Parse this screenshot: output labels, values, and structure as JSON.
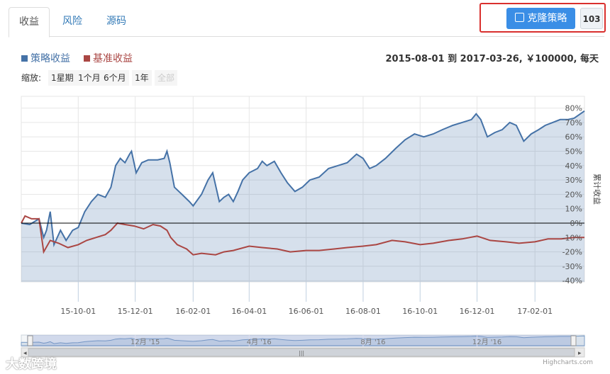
{
  "tabs": [
    "收益",
    "风险",
    "源码"
  ],
  "clone": {
    "label": "克隆策略",
    "count": "103"
  },
  "legend": {
    "strategy": "策略收益",
    "benchmark": "基准收益"
  },
  "range_text": "2015-08-01 到 2017-03-26, ￥100000, 每天",
  "zoom": {
    "label": "缩放:",
    "buttons": [
      "1星期",
      "1个月",
      "6个月",
      "1年",
      "全部"
    ]
  },
  "navigator_labels": [
    "12月 '15",
    "4月 '16",
    "8月 '16",
    "12月 '16"
  ],
  "watermark": "大数跨境",
  "credits": "Highcharts.com",
  "colors": {
    "strategy": "#4572a7",
    "benchmark": "#aa4643",
    "accent": "#3a8ee6",
    "highlight": "#d9302e"
  },
  "chart_data": {
    "type": "area",
    "ylabel": "累计收益",
    "yticks": [
      "80%",
      "70%",
      "60%",
      "50%",
      "40%",
      "30%",
      "20%",
      "10%",
      "0%",
      "-10%",
      "-20%",
      "-30%",
      "-40%"
    ],
    "ylim": [
      -40,
      80
    ],
    "xticks": [
      "15-10-01",
      "15-12-01",
      "16-02-01",
      "16-04-01",
      "16-06-01",
      "16-08-01",
      "16-10-01",
      "16-12-01",
      "17-02-01"
    ],
    "xlim": [
      "2015-08-01",
      "2017-03-26"
    ],
    "series": [
      {
        "name": "策略收益",
        "points": [
          [
            "2015-08-01",
            0
          ],
          [
            "2015-08-10",
            -1
          ],
          [
            "2015-08-20",
            3
          ],
          [
            "2015-08-25",
            -10
          ],
          [
            "2015-08-28",
            -5
          ],
          [
            "2015-09-01",
            8
          ],
          [
            "2015-09-05",
            -15
          ],
          [
            "2015-09-12",
            -5
          ],
          [
            "2015-09-18",
            -12
          ],
          [
            "2015-09-25",
            -5
          ],
          [
            "2015-10-01",
            -3
          ],
          [
            "2015-10-08",
            8
          ],
          [
            "2015-10-15",
            15
          ],
          [
            "2015-10-22",
            20
          ],
          [
            "2015-10-30",
            18
          ],
          [
            "2015-11-05",
            25
          ],
          [
            "2015-11-10",
            40
          ],
          [
            "2015-11-15",
            45
          ],
          [
            "2015-11-20",
            42
          ],
          [
            "2015-11-25",
            48
          ],
          [
            "2015-11-27",
            50
          ],
          [
            "2015-12-02",
            35
          ],
          [
            "2015-12-08",
            42
          ],
          [
            "2015-12-15",
            44
          ],
          [
            "2015-12-25",
            44
          ],
          [
            "2016-01-01",
            45
          ],
          [
            "2016-01-04",
            50
          ],
          [
            "2016-01-07",
            42
          ],
          [
            "2016-01-12",
            25
          ],
          [
            "2016-01-20",
            20
          ],
          [
            "2016-01-28",
            15
          ],
          [
            "2016-02-01",
            12
          ],
          [
            "2016-02-10",
            20
          ],
          [
            "2016-02-17",
            30
          ],
          [
            "2016-02-22",
            35
          ],
          [
            "2016-02-29",
            15
          ],
          [
            "2016-03-05",
            18
          ],
          [
            "2016-03-10",
            20
          ],
          [
            "2016-03-15",
            15
          ],
          [
            "2016-03-20",
            22
          ],
          [
            "2016-03-25",
            30
          ],
          [
            "2016-04-01",
            35
          ],
          [
            "2016-04-10",
            38
          ],
          [
            "2016-04-15",
            43
          ],
          [
            "2016-04-20",
            40
          ],
          [
            "2016-04-28",
            43
          ],
          [
            "2016-05-05",
            35
          ],
          [
            "2016-05-12",
            28
          ],
          [
            "2016-05-20",
            22
          ],
          [
            "2016-05-28",
            25
          ],
          [
            "2016-06-05",
            30
          ],
          [
            "2016-06-15",
            32
          ],
          [
            "2016-06-25",
            38
          ],
          [
            "2016-07-05",
            40
          ],
          [
            "2016-07-15",
            42
          ],
          [
            "2016-07-25",
            48
          ],
          [
            "2016-08-01",
            45
          ],
          [
            "2016-08-08",
            38
          ],
          [
            "2016-08-15",
            40
          ],
          [
            "2016-08-25",
            45
          ],
          [
            "2016-09-05",
            52
          ],
          [
            "2016-09-15",
            58
          ],
          [
            "2016-09-25",
            62
          ],
          [
            "2016-10-05",
            60
          ],
          [
            "2016-10-15",
            62
          ],
          [
            "2016-10-25",
            65
          ],
          [
            "2016-11-05",
            68
          ],
          [
            "2016-11-15",
            70
          ],
          [
            "2016-11-25",
            72
          ],
          [
            "2016-11-30",
            76
          ],
          [
            "2016-12-05",
            72
          ],
          [
            "2016-12-12",
            60
          ],
          [
            "2016-12-20",
            63
          ],
          [
            "2016-12-28",
            65
          ],
          [
            "2017-01-05",
            70
          ],
          [
            "2017-01-12",
            68
          ],
          [
            "2017-01-20",
            57
          ],
          [
            "2017-01-28",
            62
          ],
          [
            "2017-02-05",
            65
          ],
          [
            "2017-02-12",
            68
          ],
          [
            "2017-02-20",
            70
          ],
          [
            "2017-02-28",
            72
          ],
          [
            "2017-03-08",
            72
          ],
          [
            "2017-03-15",
            73
          ],
          [
            "2017-03-26",
            78
          ]
        ]
      },
      {
        "name": "基准收益",
        "points": [
          [
            "2015-08-01",
            0
          ],
          [
            "2015-08-05",
            5
          ],
          [
            "2015-08-12",
            3
          ],
          [
            "2015-08-20",
            3
          ],
          [
            "2015-08-25",
            -20
          ],
          [
            "2015-09-01",
            -12
          ],
          [
            "2015-09-10",
            -14
          ],
          [
            "2015-09-20",
            -17
          ],
          [
            "2015-10-01",
            -15
          ],
          [
            "2015-10-10",
            -12
          ],
          [
            "2015-10-20",
            -10
          ],
          [
            "2015-10-30",
            -8
          ],
          [
            "2015-11-05",
            -5
          ],
          [
            "2015-11-12",
            0
          ],
          [
            "2015-11-20",
            -1
          ],
          [
            "2015-11-30",
            -2
          ],
          [
            "2015-12-10",
            -4
          ],
          [
            "2015-12-20",
            -1
          ],
          [
            "2015-12-28",
            -2
          ],
          [
            "2016-01-04",
            -5
          ],
          [
            "2016-01-08",
            -10
          ],
          [
            "2016-01-15",
            -15
          ],
          [
            "2016-01-25",
            -18
          ],
          [
            "2016-02-01",
            -22
          ],
          [
            "2016-02-10",
            -21
          ],
          [
            "2016-02-25",
            -22
          ],
          [
            "2016-03-05",
            -20
          ],
          [
            "2016-03-15",
            -19
          ],
          [
            "2016-04-01",
            -16
          ],
          [
            "2016-04-15",
            -17
          ],
          [
            "2016-05-01",
            -18
          ],
          [
            "2016-05-15",
            -20
          ],
          [
            "2016-06-01",
            -19
          ],
          [
            "2016-06-15",
            -19
          ],
          [
            "2016-07-01",
            -18
          ],
          [
            "2016-07-15",
            -17
          ],
          [
            "2016-08-01",
            -16
          ],
          [
            "2016-08-15",
            -15
          ],
          [
            "2016-09-01",
            -12
          ],
          [
            "2016-09-15",
            -13
          ],
          [
            "2016-10-01",
            -15
          ],
          [
            "2016-10-15",
            -14
          ],
          [
            "2016-11-01",
            -12
          ],
          [
            "2016-11-15",
            -11
          ],
          [
            "2016-12-01",
            -9
          ],
          [
            "2016-12-15",
            -12
          ],
          [
            "2017-01-01",
            -13
          ],
          [
            "2017-01-15",
            -14
          ],
          [
            "2017-02-01",
            -13
          ],
          [
            "2017-02-15",
            -11
          ],
          [
            "2017-03-01",
            -11
          ],
          [
            "2017-03-15",
            -10
          ],
          [
            "2017-03-26",
            -10
          ]
        ]
      }
    ]
  }
}
